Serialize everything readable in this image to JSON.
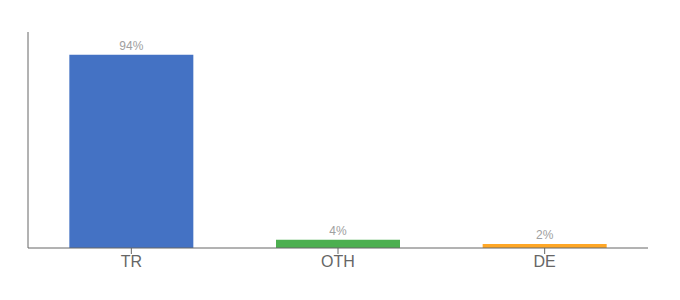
{
  "chart_data": {
    "type": "bar",
    "categories": [
      "TR",
      "OTH",
      "DE"
    ],
    "values": [
      94,
      4,
      2
    ],
    "value_labels": [
      "94%",
      "4%",
      "2%"
    ],
    "data_labels": true,
    "colors": [
      "#4472c4",
      "#4caf50",
      "#ffa726"
    ],
    "ylim": [
      0,
      105
    ],
    "grid": false,
    "tick_labels": "x"
  }
}
